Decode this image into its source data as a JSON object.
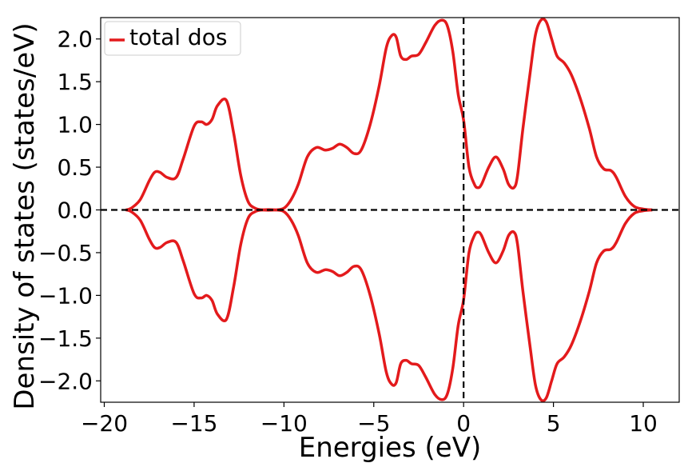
{
  "chart_data": {
    "type": "line",
    "title": "",
    "xlabel": "Energies (eV)",
    "ylabel": "Density of states (states/eV)",
    "xlim": [
      -20.2,
      12.0
    ],
    "ylim": [
      -2.25,
      2.25
    ],
    "xticks": [
      -20,
      -15,
      -10,
      -5,
      0,
      5,
      10
    ],
    "xtick_labels": [
      "−20",
      "−15",
      "−10",
      "−5",
      "0",
      "5",
      "10"
    ],
    "yticks": [
      -2.0,
      -1.5,
      -1.0,
      -0.5,
      0.0,
      0.5,
      1.0,
      1.5,
      2.0
    ],
    "ytick_labels": [
      "−2.0",
      "−1.5",
      "−1.0",
      "−0.5",
      "0.0",
      "0.5",
      "1.0",
      "1.5",
      "2.0"
    ],
    "grid": false,
    "legend": {
      "position": "top-left",
      "entries": [
        "total dos"
      ]
    },
    "reference_lines": [
      {
        "orientation": "horizontal",
        "value": 0.0,
        "style": "dashed",
        "color": "#000000"
      },
      {
        "orientation": "vertical",
        "value": 0.0,
        "style": "dashed",
        "color": "#000000"
      }
    ],
    "series": [
      {
        "name": "total dos",
        "color": "#e31a1c",
        "mirrored_negative": true,
        "x": [
          -18.8,
          -18.5,
          -18.0,
          -17.5,
          -17.2,
          -16.9,
          -16.5,
          -16.0,
          -15.6,
          -15.0,
          -14.6,
          -14.3,
          -14.0,
          -13.7,
          -13.2,
          -12.8,
          -12.4,
          -12.0,
          -11.6,
          -11.2,
          -10.5,
          -10.0,
          -9.6,
          -9.2,
          -8.7,
          -8.2,
          -7.7,
          -7.3,
          -6.9,
          -6.5,
          -6.1,
          -5.7,
          -5.2,
          -4.7,
          -4.3,
          -4.0,
          -3.75,
          -3.5,
          -3.2,
          -2.9,
          -2.5,
          -2.1,
          -1.6,
          -1.2,
          -0.9,
          -0.6,
          -0.3,
          0.0,
          0.3,
          0.6,
          0.8,
          1.0,
          1.4,
          1.8,
          2.2,
          2.5,
          2.8,
          3.0,
          3.3,
          3.7,
          4.0,
          4.3,
          4.6,
          4.9,
          5.2,
          5.6,
          6.0,
          6.5,
          7.0,
          7.4,
          7.8,
          8.2,
          8.5,
          9.0,
          9.5,
          10.0,
          10.5
        ],
        "y": [
          0.0,
          0.02,
          0.12,
          0.34,
          0.44,
          0.44,
          0.38,
          0.38,
          0.6,
          0.98,
          1.03,
          1.0,
          1.06,
          1.22,
          1.28,
          0.9,
          0.4,
          0.1,
          0.02,
          0.0,
          0.0,
          0.02,
          0.12,
          0.3,
          0.62,
          0.73,
          0.7,
          0.72,
          0.77,
          0.73,
          0.66,
          0.7,
          1.0,
          1.45,
          1.9,
          2.04,
          2.02,
          1.8,
          1.76,
          1.8,
          1.82,
          1.96,
          2.16,
          2.22,
          2.15,
          1.85,
          1.35,
          1.05,
          0.5,
          0.3,
          0.26,
          0.3,
          0.5,
          0.62,
          0.48,
          0.3,
          0.26,
          0.4,
          0.95,
          1.6,
          2.05,
          2.22,
          2.2,
          2.0,
          1.8,
          1.72,
          1.58,
          1.3,
          0.95,
          0.62,
          0.48,
          0.46,
          0.38,
          0.16,
          0.04,
          0.01,
          0.0
        ]
      }
    ]
  }
}
